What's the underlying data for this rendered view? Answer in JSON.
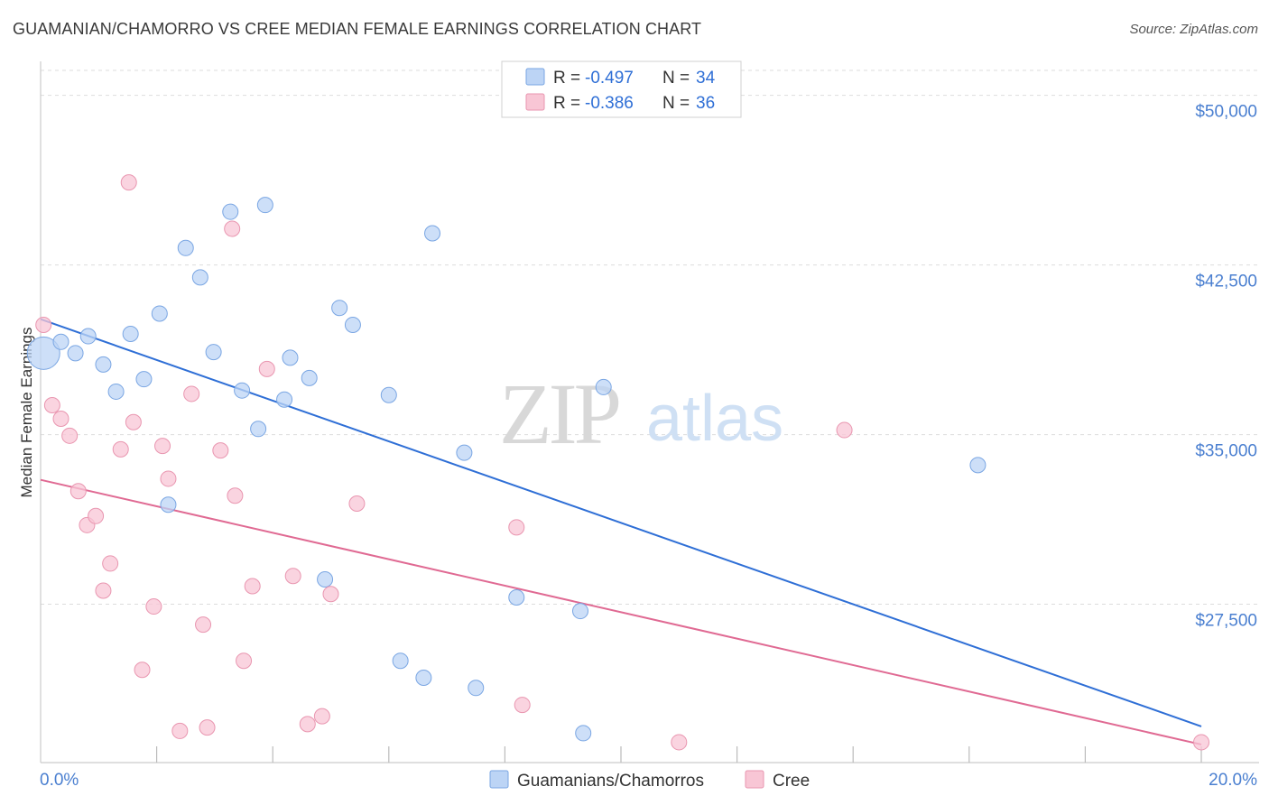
{
  "title": "GUAMANIAN/CHAMORRO VS CREE MEDIAN FEMALE EARNINGS CORRELATION CHART",
  "source": "Source: ZipAtlas.com",
  "watermark": {
    "zip": "ZIP",
    "atlas": "atlas"
  },
  "colors": {
    "blue_fill": "#bcd4f5",
    "blue_stroke": "#7aa6e3",
    "blue_line": "#2f6fd6",
    "pink_fill": "#f8c6d5",
    "pink_stroke": "#e996b0",
    "pink_line": "#e06a93",
    "grid": "#dddddd",
    "tick_text": "#4a7fd0"
  },
  "legend": {
    "rows": [
      {
        "r_label": "R = ",
        "r_value": "-0.497",
        "n_label": "N = ",
        "n_value": "34"
      },
      {
        "r_label": "R = ",
        "r_value": "-0.386",
        "n_label": "N = ",
        "n_value": "36"
      }
    ]
  },
  "chart_data": {
    "type": "scatter",
    "xlabel": "",
    "ylabel": "Median Female Earnings",
    "xlim": [
      0,
      20
    ],
    "ylim": [
      20500,
      51500
    ],
    "x_tick_labels": [
      "0.0%",
      "20.0%"
    ],
    "y_ticks": [
      27500,
      35000,
      42500,
      50000
    ],
    "y_tick_labels": [
      "$27,500",
      "$35,000",
      "$42,500",
      "$50,000"
    ],
    "series": [
      {
        "name": "Guamanians/Chamorros",
        "r": -0.497,
        "n": 34,
        "trend": {
          "x": [
            0,
            20
          ],
          "y": [
            40100,
            22100
          ]
        },
        "points": [
          {
            "x": 0.05,
            "y": 38600,
            "big": true
          },
          {
            "x": 0.35,
            "y": 39100
          },
          {
            "x": 0.6,
            "y": 38600
          },
          {
            "x": 0.82,
            "y": 39350
          },
          {
            "x": 1.08,
            "y": 38100
          },
          {
            "x": 1.3,
            "y": 36900
          },
          {
            "x": 1.55,
            "y": 39450
          },
          {
            "x": 1.78,
            "y": 37450
          },
          {
            "x": 2.05,
            "y": 40350
          },
          {
            "x": 2.2,
            "y": 31900
          },
          {
            "x": 2.5,
            "y": 43250
          },
          {
            "x": 2.75,
            "y": 41950
          },
          {
            "x": 2.98,
            "y": 38650
          },
          {
            "x": 3.27,
            "y": 44850
          },
          {
            "x": 3.47,
            "y": 36950
          },
          {
            "x": 3.75,
            "y": 35250
          },
          {
            "x": 3.87,
            "y": 45150
          },
          {
            "x": 4.3,
            "y": 38400
          },
          {
            "x": 4.2,
            "y": 36550
          },
          {
            "x": 4.63,
            "y": 37500
          },
          {
            "x": 4.9,
            "y": 28600
          },
          {
            "x": 5.15,
            "y": 40600
          },
          {
            "x": 5.38,
            "y": 39850
          },
          {
            "x": 6.0,
            "y": 36750
          },
          {
            "x": 6.2,
            "y": 25000
          },
          {
            "x": 6.6,
            "y": 24250
          },
          {
            "x": 6.75,
            "y": 43900
          },
          {
            "x": 7.3,
            "y": 34200
          },
          {
            "x": 7.5,
            "y": 23800
          },
          {
            "x": 8.2,
            "y": 27800
          },
          {
            "x": 9.3,
            "y": 27200
          },
          {
            "x": 9.35,
            "y": 21800
          },
          {
            "x": 9.7,
            "y": 37100
          },
          {
            "x": 16.15,
            "y": 33650
          }
        ]
      },
      {
        "name": "Cree",
        "r": -0.386,
        "n": 36,
        "trend": {
          "x": [
            0,
            20
          ],
          "y": [
            33000,
            21300
          ]
        },
        "points": [
          {
            "x": 0.05,
            "y": 39850
          },
          {
            "x": 0.2,
            "y": 36300
          },
          {
            "x": 0.35,
            "y": 35700
          },
          {
            "x": 0.5,
            "y": 34950
          },
          {
            "x": 0.65,
            "y": 32500
          },
          {
            "x": 0.8,
            "y": 31000
          },
          {
            "x": 0.95,
            "y": 31400
          },
          {
            "x": 1.08,
            "y": 28100
          },
          {
            "x": 1.2,
            "y": 29300
          },
          {
            "x": 1.38,
            "y": 34350
          },
          {
            "x": 1.52,
            "y": 46150
          },
          {
            "x": 1.6,
            "y": 35550
          },
          {
            "x": 1.75,
            "y": 24600
          },
          {
            "x": 1.95,
            "y": 27400
          },
          {
            "x": 2.1,
            "y": 34500
          },
          {
            "x": 2.2,
            "y": 33050
          },
          {
            "x": 2.4,
            "y": 21900
          },
          {
            "x": 2.6,
            "y": 36800
          },
          {
            "x": 2.8,
            "y": 26600
          },
          {
            "x": 2.87,
            "y": 22050
          },
          {
            "x": 3.1,
            "y": 34300
          },
          {
            "x": 3.3,
            "y": 44100
          },
          {
            "x": 3.35,
            "y": 32300
          },
          {
            "x": 3.5,
            "y": 25000
          },
          {
            "x": 3.65,
            "y": 28300
          },
          {
            "x": 3.9,
            "y": 37900
          },
          {
            "x": 4.35,
            "y": 28750
          },
          {
            "x": 4.6,
            "y": 22200
          },
          {
            "x": 4.85,
            "y": 22550
          },
          {
            "x": 5.0,
            "y": 27950
          },
          {
            "x": 5.45,
            "y": 31950
          },
          {
            "x": 8.2,
            "y": 30900
          },
          {
            "x": 8.3,
            "y": 23050
          },
          {
            "x": 11.0,
            "y": 21400
          },
          {
            "x": 13.85,
            "y": 35200
          },
          {
            "x": 20.0,
            "y": 21400
          }
        ]
      }
    ]
  }
}
